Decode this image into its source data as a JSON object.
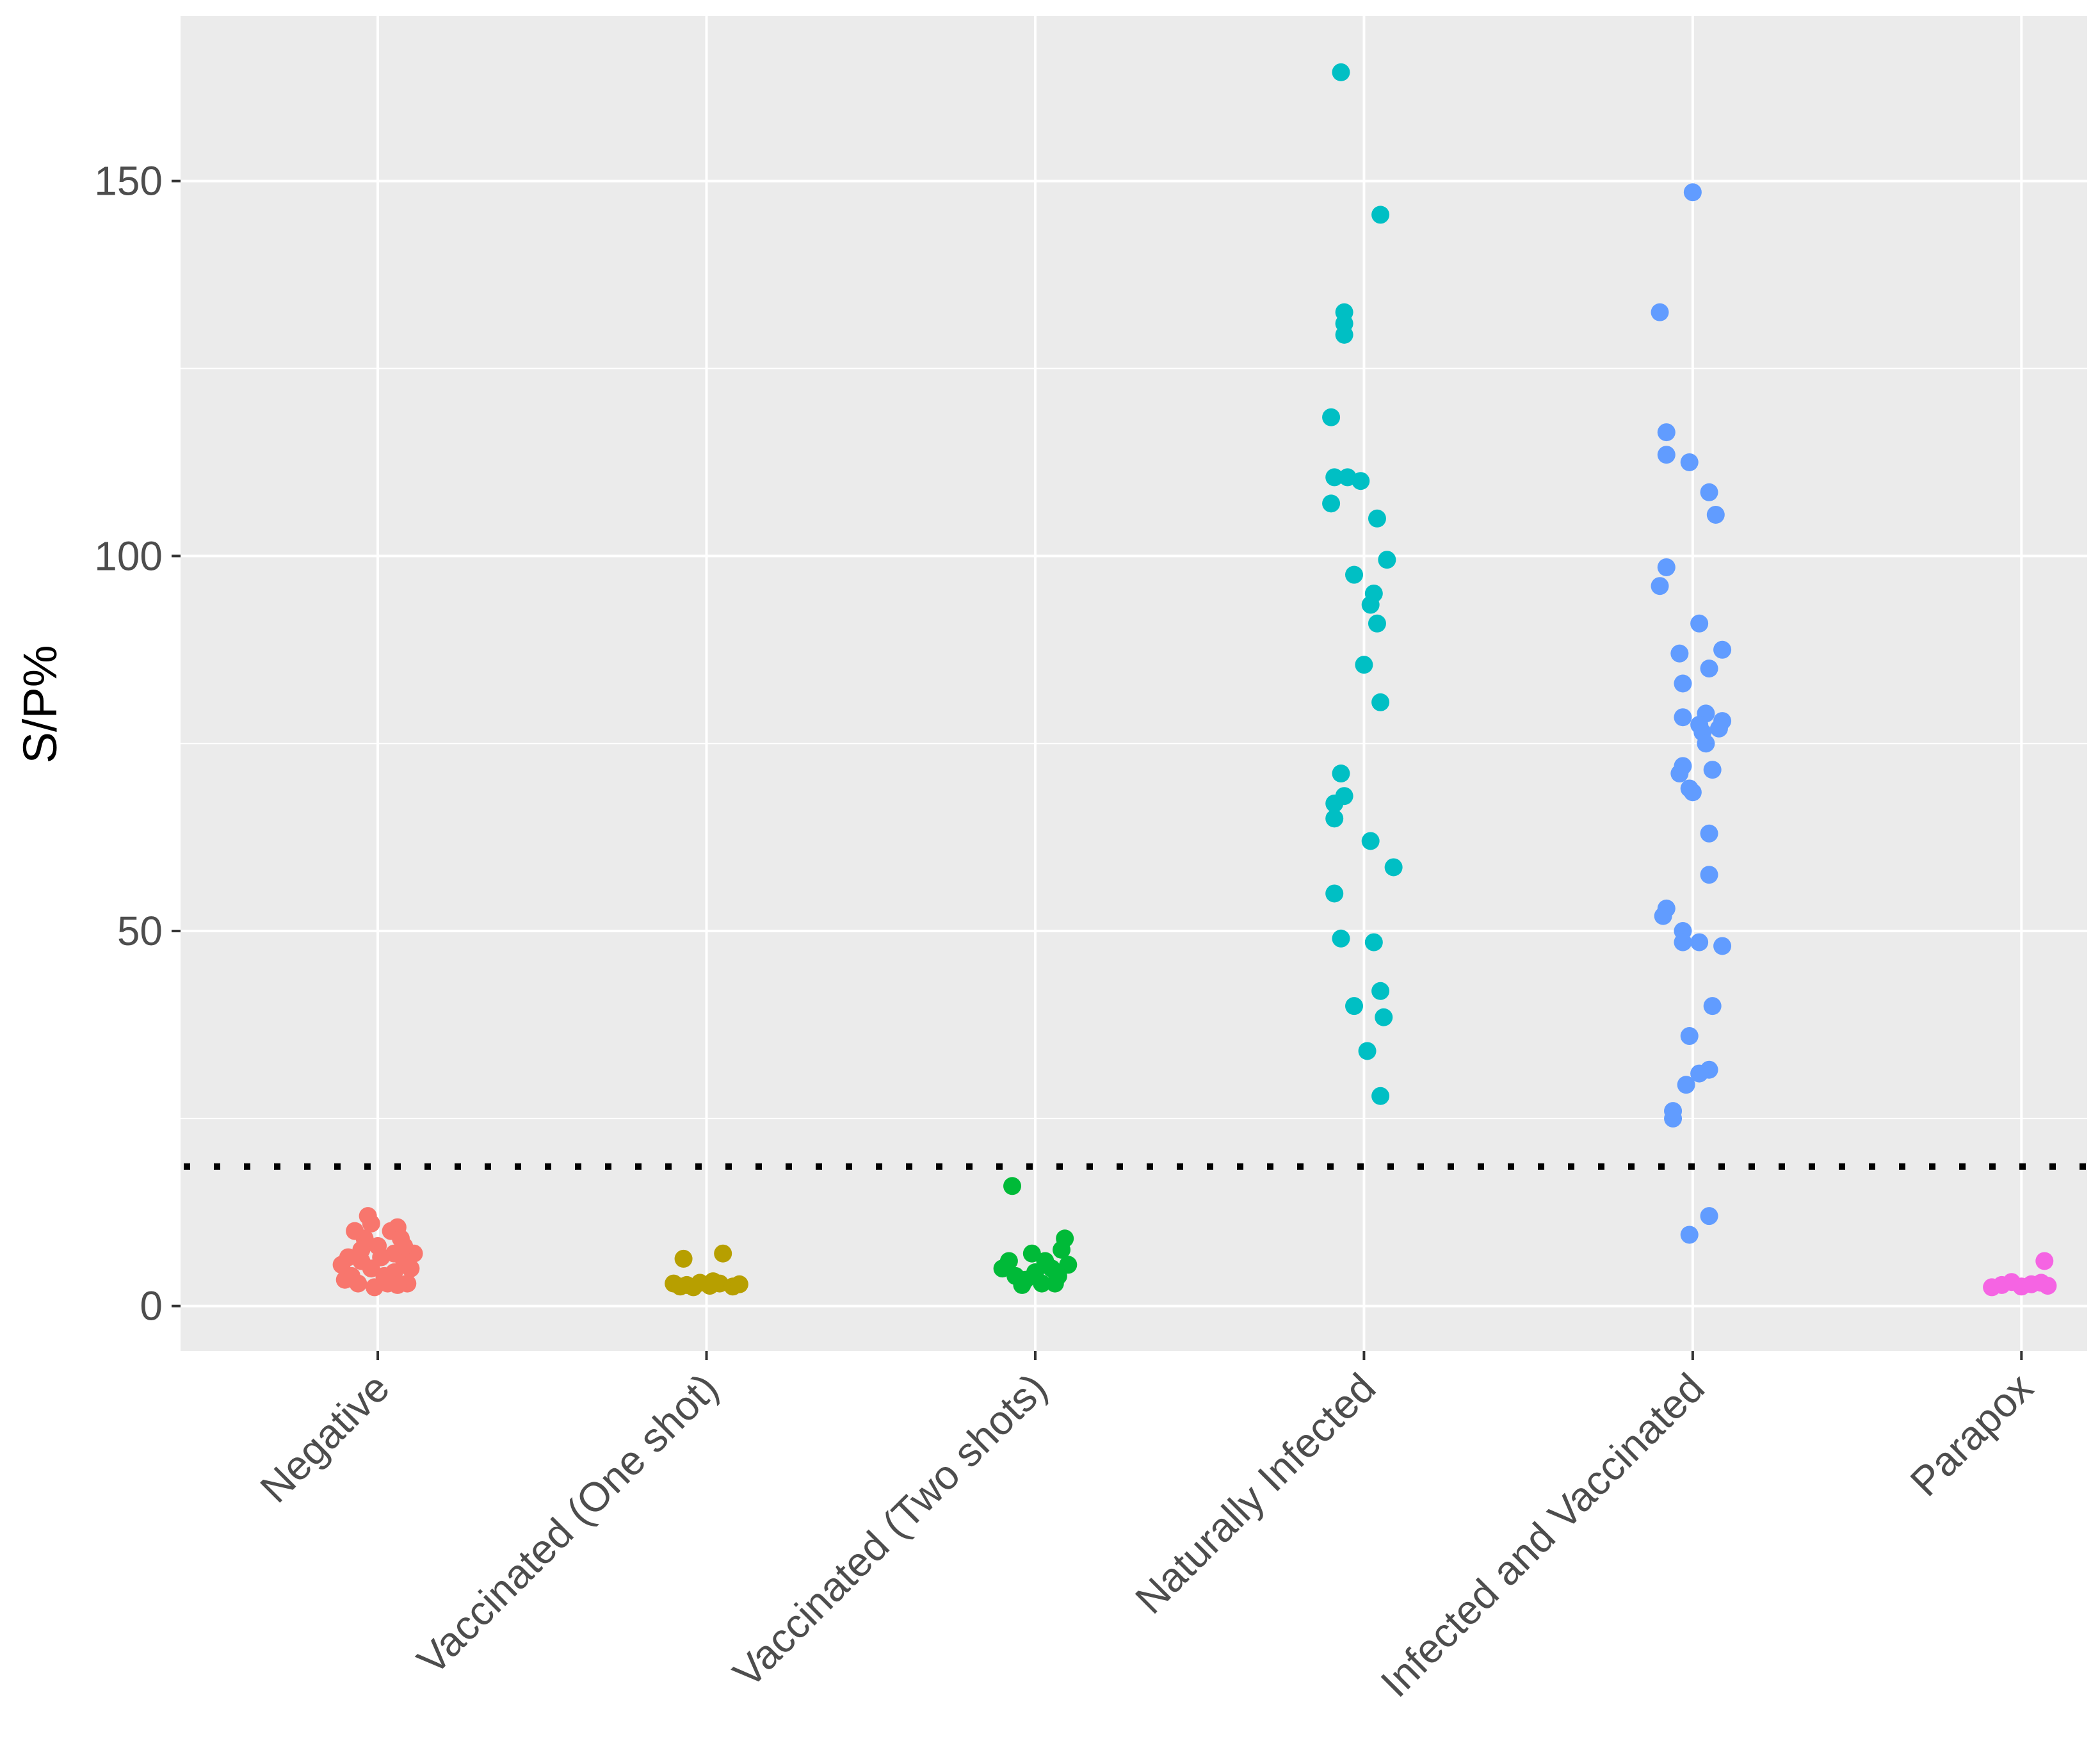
{
  "chart_data": {
    "type": "scatter",
    "title": "",
    "xlabel": "",
    "ylabel": "S/P%",
    "ylim": [
      -6,
      172
    ],
    "yticks": [
      0,
      50,
      100,
      150
    ],
    "grid": true,
    "legend": "none",
    "cutoff": 18.6,
    "categories": [
      "Negative",
      "Vaccinated (One shot)",
      "Vaccinated (Two shots)",
      "Naturally Infected",
      "Infected and Vaccinated",
      "Parapox"
    ],
    "series": [
      {
        "name": "Negative",
        "color": "#F8766D",
        "points": [
          {
            "dx": -0.05,
            "y": 6
          },
          {
            "dx": -0.02,
            "y": 5
          },
          {
            "dx": 0.02,
            "y": 4
          },
          {
            "dx": 0.05,
            "y": 7
          },
          {
            "dx": 0.08,
            "y": 6
          },
          {
            "dx": 0.1,
            "y": 5
          },
          {
            "dx": -0.08,
            "y": 4
          },
          {
            "dx": -0.1,
            "y": 3.5
          },
          {
            "dx": 0.0,
            "y": 8
          },
          {
            "dx": -0.04,
            "y": 9
          },
          {
            "dx": 0.04,
            "y": 10
          },
          {
            "dx": 0.06,
            "y": 10.5
          },
          {
            "dx": -0.02,
            "y": 11
          },
          {
            "dx": -0.03,
            "y": 12
          },
          {
            "dx": -0.07,
            "y": 10
          },
          {
            "dx": 0.07,
            "y": 9
          },
          {
            "dx": 0.03,
            "y": 3
          },
          {
            "dx": -0.06,
            "y": 3
          },
          {
            "dx": 0.09,
            "y": 3
          },
          {
            "dx": -0.09,
            "y": 6.5
          },
          {
            "dx": 0.11,
            "y": 7
          },
          {
            "dx": -0.11,
            "y": 5.5
          },
          {
            "dx": 0.01,
            "y": 6.5
          },
          {
            "dx": 0.05,
            "y": 4.5
          },
          {
            "dx": -0.05,
            "y": 7.5
          },
          {
            "dx": 0.08,
            "y": 8
          },
          {
            "dx": -0.01,
            "y": 2.5
          },
          {
            "dx": 0.06,
            "y": 2.8
          }
        ]
      },
      {
        "name": "Vaccinated (One shot)",
        "color": "#B79F00",
        "points": [
          {
            "dx": -0.07,
            "y": 6.3
          },
          {
            "dx": 0.05,
            "y": 7.0
          },
          {
            "dx": -0.1,
            "y": 3.0
          },
          {
            "dx": -0.06,
            "y": 2.8
          },
          {
            "dx": -0.02,
            "y": 3.1
          },
          {
            "dx": 0.01,
            "y": 2.7
          },
          {
            "dx": 0.04,
            "y": 3.0
          },
          {
            "dx": 0.08,
            "y": 2.6
          },
          {
            "dx": 0.1,
            "y": 2.9
          },
          {
            "dx": -0.04,
            "y": 2.5
          },
          {
            "dx": 0.02,
            "y": 3.3
          },
          {
            "dx": -0.08,
            "y": 2.6
          }
        ]
      },
      {
        "name": "Vaccinated (Two shots)",
        "color": "#00BA38",
        "points": [
          {
            "dx": -0.07,
            "y": 16.0
          },
          {
            "dx": 0.09,
            "y": 9.0
          },
          {
            "dx": 0.08,
            "y": 7.5
          },
          {
            "dx": 0.1,
            "y": 5.5
          },
          {
            "dx": -0.1,
            "y": 5.0
          },
          {
            "dx": -0.06,
            "y": 4.0
          },
          {
            "dx": -0.03,
            "y": 3.5
          },
          {
            "dx": 0.0,
            "y": 4.5
          },
          {
            "dx": 0.03,
            "y": 6.0
          },
          {
            "dx": 0.06,
            "y": 3.0
          },
          {
            "dx": -0.08,
            "y": 6.0
          },
          {
            "dx": -0.01,
            "y": 7.0
          },
          {
            "dx": 0.02,
            "y": 3.0
          },
          {
            "dx": 0.05,
            "y": 5.0
          },
          {
            "dx": -0.04,
            "y": 2.8
          },
          {
            "dx": 0.07,
            "y": 4.0
          }
        ]
      },
      {
        "name": "Naturally Infected",
        "color": "#00BFC4",
        "points": [
          {
            "dx": -0.07,
            "y": 164.5
          },
          {
            "dx": 0.05,
            "y": 145.5
          },
          {
            "dx": -0.06,
            "y": 132.5
          },
          {
            "dx": -0.06,
            "y": 131
          },
          {
            "dx": -0.06,
            "y": 129.5
          },
          {
            "dx": -0.1,
            "y": 118.5
          },
          {
            "dx": -0.09,
            "y": 110.5
          },
          {
            "dx": -0.05,
            "y": 110.5
          },
          {
            "dx": -0.01,
            "y": 110
          },
          {
            "dx": -0.1,
            "y": 107
          },
          {
            "dx": 0.04,
            "y": 105
          },
          {
            "dx": 0.07,
            "y": 99.5
          },
          {
            "dx": -0.03,
            "y": 97.5
          },
          {
            "dx": 0.03,
            "y": 95
          },
          {
            "dx": 0.02,
            "y": 93.5
          },
          {
            "dx": 0.04,
            "y": 91
          },
          {
            "dx": 0.0,
            "y": 85.5
          },
          {
            "dx": 0.05,
            "y": 80.5
          },
          {
            "dx": -0.07,
            "y": 71
          },
          {
            "dx": -0.06,
            "y": 68
          },
          {
            "dx": -0.09,
            "y": 67
          },
          {
            "dx": -0.09,
            "y": 65
          },
          {
            "dx": 0.02,
            "y": 62
          },
          {
            "dx": 0.09,
            "y": 58.5
          },
          {
            "dx": -0.09,
            "y": 55
          },
          {
            "dx": -0.07,
            "y": 49
          },
          {
            "dx": 0.03,
            "y": 48.5
          },
          {
            "dx": 0.05,
            "y": 42
          },
          {
            "dx": -0.03,
            "y": 40
          },
          {
            "dx": 0.06,
            "y": 38.5
          },
          {
            "dx": 0.01,
            "y": 34
          },
          {
            "dx": 0.05,
            "y": 28
          }
        ]
      },
      {
        "name": "Infected and Vaccinated",
        "color": "#619CFF",
        "points": [
          {
            "dx": 0.0,
            "y": 148.5
          },
          {
            "dx": -0.1,
            "y": 132.5
          },
          {
            "dx": -0.08,
            "y": 116.5
          },
          {
            "dx": -0.08,
            "y": 113.5
          },
          {
            "dx": -0.01,
            "y": 112.5
          },
          {
            "dx": 0.05,
            "y": 108.5
          },
          {
            "dx": 0.07,
            "y": 105.5
          },
          {
            "dx": -0.08,
            "y": 98.5
          },
          {
            "dx": -0.1,
            "y": 96
          },
          {
            "dx": 0.02,
            "y": 91
          },
          {
            "dx": 0.09,
            "y": 87.5
          },
          {
            "dx": -0.04,
            "y": 87
          },
          {
            "dx": 0.05,
            "y": 85
          },
          {
            "dx": -0.03,
            "y": 83
          },
          {
            "dx": 0.04,
            "y": 79
          },
          {
            "dx": -0.03,
            "y": 78.5
          },
          {
            "dx": 0.09,
            "y": 78
          },
          {
            "dx": 0.02,
            "y": 77.5
          },
          {
            "dx": 0.08,
            "y": 77
          },
          {
            "dx": 0.03,
            "y": 76.5
          },
          {
            "dx": 0.04,
            "y": 75
          },
          {
            "dx": -0.03,
            "y": 72
          },
          {
            "dx": 0.06,
            "y": 71.5
          },
          {
            "dx": -0.04,
            "y": 71
          },
          {
            "dx": -0.01,
            "y": 69
          },
          {
            "dx": 0.0,
            "y": 68.5
          },
          {
            "dx": 0.05,
            "y": 63
          },
          {
            "dx": 0.05,
            "y": 57.5
          },
          {
            "dx": -0.08,
            "y": 53
          },
          {
            "dx": -0.09,
            "y": 52
          },
          {
            "dx": -0.03,
            "y": 50
          },
          {
            "dx": -0.03,
            "y": 48.5
          },
          {
            "dx": 0.02,
            "y": 48.5
          },
          {
            "dx": 0.09,
            "y": 48
          },
          {
            "dx": 0.06,
            "y": 40
          },
          {
            "dx": -0.01,
            "y": 36
          },
          {
            "dx": 0.05,
            "y": 31.5
          },
          {
            "dx": 0.02,
            "y": 31
          },
          {
            "dx": -0.02,
            "y": 29.5
          },
          {
            "dx": -0.06,
            "y": 26
          },
          {
            "dx": -0.06,
            "y": 25
          },
          {
            "dx": 0.05,
            "y": 12
          },
          {
            "dx": -0.01,
            "y": 9.5
          }
        ]
      },
      {
        "name": "Parapox",
        "color": "#F564E3",
        "points": [
          {
            "dx": 0.07,
            "y": 6.0
          },
          {
            "dx": -0.09,
            "y": 2.5
          },
          {
            "dx": -0.06,
            "y": 2.8
          },
          {
            "dx": -0.03,
            "y": 3.2
          },
          {
            "dx": 0.0,
            "y": 2.6
          },
          {
            "dx": 0.03,
            "y": 2.9
          },
          {
            "dx": 0.06,
            "y": 3.1
          },
          {
            "dx": 0.08,
            "y": 2.7
          }
        ]
      }
    ]
  }
}
